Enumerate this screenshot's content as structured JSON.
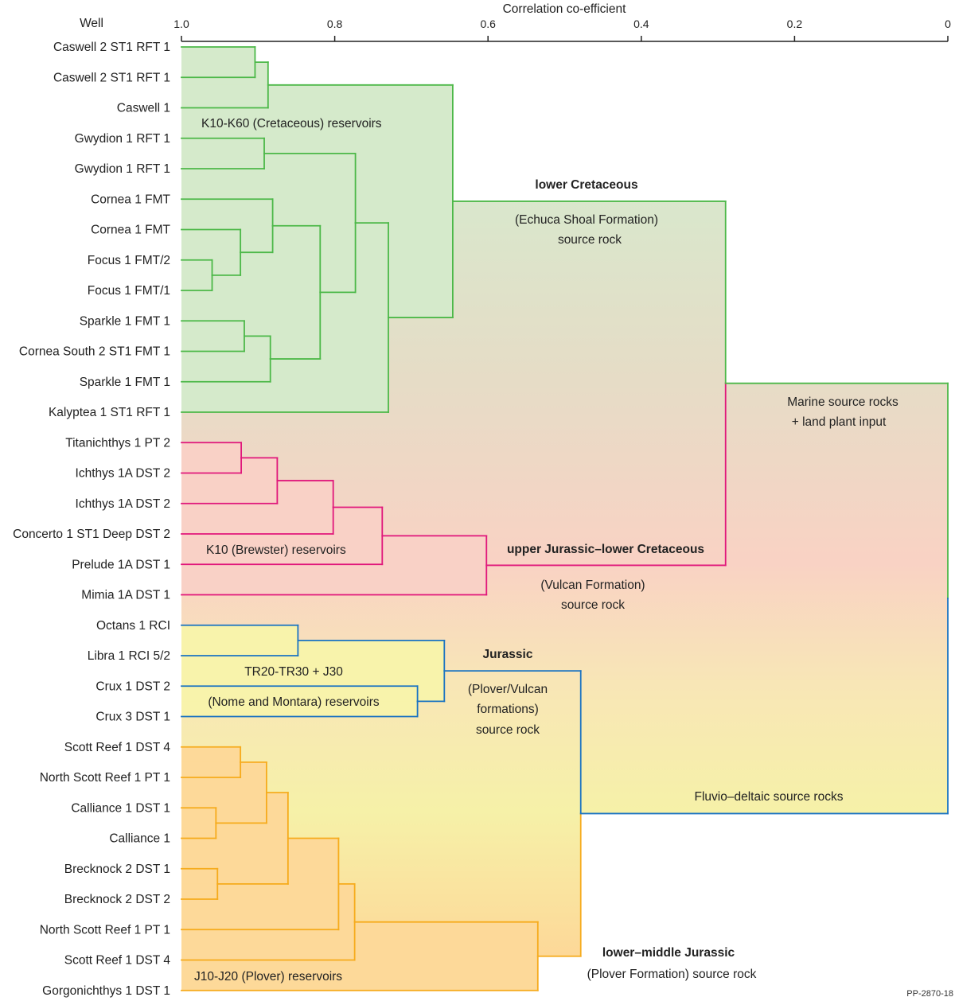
{
  "axis": {
    "title": "Correlation co-efficient",
    "leaf_header": "Well",
    "range": [
      1.0,
      0
    ],
    "ticks": [
      {
        "value": 1.0,
        "label": "1.0"
      },
      {
        "value": 0.8,
        "label": "0.8"
      },
      {
        "value": 0.6,
        "label": "0.6"
      },
      {
        "value": 0.4,
        "label": "0.4"
      },
      {
        "value": 0.2,
        "label": "0.2"
      },
      {
        "value": 0,
        "label": "0"
      }
    ]
  },
  "groups": {
    "green": {
      "line": "#4cb848",
      "fill": "#d5eacb"
    },
    "pink": {
      "line": "#e0177b",
      "fill": "#f9d1c6"
    },
    "blue": {
      "line": "#1a73c2",
      "fill": "#f8f3ab"
    },
    "orange": {
      "line": "#f6ab1c",
      "fill": "#fdd999"
    }
  },
  "gradient": [
    "#d9e7cc",
    "#e6dcc6",
    "#f9d2c4",
    "#f8e6b6",
    "#f6f1a8",
    "#fdd898"
  ],
  "leaves": [
    {
      "label": "Caswell 2 ST1 RFT 1",
      "group": "green"
    },
    {
      "label": "Caswell 2 ST1 RFT 1",
      "group": "green"
    },
    {
      "label": "Caswell 1",
      "group": "green"
    },
    {
      "label": "Gwydion 1 RFT 1",
      "group": "green"
    },
    {
      "label": "Gwydion 1 RFT 1",
      "group": "green"
    },
    {
      "label": "Cornea 1 FMT",
      "group": "green"
    },
    {
      "label": "Cornea 1 FMT",
      "group": "green"
    },
    {
      "label": "Focus 1 FMT/2",
      "group": "green"
    },
    {
      "label": "Focus 1 FMT/1",
      "group": "green"
    },
    {
      "label": "Sparkle 1 FMT 1",
      "group": "green"
    },
    {
      "label": "Cornea South 2 ST1 FMT 1",
      "group": "green"
    },
    {
      "label": "Sparkle 1 FMT 1",
      "group": "green"
    },
    {
      "label": "Kalyptea 1 ST1 RFT 1",
      "group": "green"
    },
    {
      "label": "Titanichthys 1 PT 2",
      "group": "pink"
    },
    {
      "label": "Ichthys 1A DST 2",
      "group": "pink"
    },
    {
      "label": "Ichthys 1A DST 2",
      "group": "pink"
    },
    {
      "label": "Concerto 1 ST1 Deep DST 2",
      "group": "pink"
    },
    {
      "label": "Prelude 1A DST 1",
      "group": "pink"
    },
    {
      "label": "Mimia 1A DST 1",
      "group": "pink"
    },
    {
      "label": "Octans 1 RCI",
      "group": "blue"
    },
    {
      "label": "Libra 1 RCI 5/2",
      "group": "blue"
    },
    {
      "label": "Crux 1 DST 2",
      "group": "blue"
    },
    {
      "label": "Crux 3 DST 1",
      "group": "blue"
    },
    {
      "label": "Scott Reef 1 DST 4",
      "group": "orange"
    },
    {
      "label": "North Scott Reef 1 PT 1",
      "group": "orange"
    },
    {
      "label": "Calliance 1 DST 1",
      "group": "orange"
    },
    {
      "label": "Calliance 1",
      "group": "orange"
    },
    {
      "label": "Brecknock 2 DST 1",
      "group": "orange"
    },
    {
      "label": "Brecknock 2 DST 2",
      "group": "orange"
    },
    {
      "label": "North Scott Reef 1 PT 1",
      "group": "orange"
    },
    {
      "label": "Scott Reef 1 DST 4",
      "group": "orange"
    },
    {
      "label": "Gorgonichthys 1 DST 1",
      "group": "orange"
    }
  ],
  "tree": {
    "h": 0.0,
    "c": [
      {
        "h": 0.29,
        "c": [
          {
            "h": 0.646,
            "c": [
              {
                "h": 0.887,
                "c": [
                  {
                    "h": 0.904,
                    "c": [
                      0,
                      1
                    ]
                  },
                  2
                ]
              },
              {
                "h": 0.73,
                "c": [
                  {
                    "h": 0.773,
                    "c": [
                      {
                        "h": 0.892,
                        "c": [
                          3,
                          4
                        ]
                      },
                      {
                        "h": 0.819,
                        "c": [
                          {
                            "h": 0.881,
                            "c": [
                              5,
                              {
                                "h": 0.923,
                                "c": [
                                  6,
                                  {
                                    "h": 0.96,
                                    "c": [
                                      7,
                                      8
                                    ]
                                  }
                                ]
                              }
                            ]
                          },
                          {
                            "h": 0.884,
                            "c": [
                              {
                                "h": 0.918,
                                "c": [
                                  9,
                                  10
                                ]
                              },
                              11
                            ]
                          }
                        ]
                      }
                    ]
                  },
                  12
                ]
              }
            ]
          },
          {
            "h": 0.602,
            "c": [
              {
                "h": 0.738,
                "c": [
                  {
                    "h": 0.802,
                    "c": [
                      {
                        "h": 0.875,
                        "c": [
                          {
                            "h": 0.922,
                            "c": [
                              13,
                              14
                            ]
                          },
                          15
                        ]
                      },
                      16
                    ]
                  },
                  17
                ]
              },
              18
            ]
          }
        ]
      },
      {
        "h": 0.479,
        "c": [
          {
            "h": 0.657,
            "c": [
              {
                "h": 0.848,
                "c": [
                  19,
                  20
                ]
              },
              {
                "h": 0.692,
                "c": [
                  21,
                  22
                ]
              }
            ]
          },
          {
            "h": 0.535,
            "c": [
              {
                "h": 0.774,
                "c": [
                  {
                    "h": 0.795,
                    "c": [
                      {
                        "h": 0.861,
                        "c": [
                          {
                            "h": 0.889,
                            "c": [
                              {
                                "h": 0.923,
                                "c": [
                                  23,
                                  24
                                ]
                              },
                              {
                                "h": 0.955,
                                "c": [
                                  25,
                                  26
                                ]
                              }
                            ]
                          },
                          {
                            "h": 0.953,
                            "c": [
                              27,
                              28
                            ]
                          }
                        ]
                      },
                      29
                    ]
                  },
                  30
                ]
              },
              31
            ]
          }
        ]
      }
    ]
  },
  "annotations": {
    "green_reservoirs": "K10-K60 (Cretaceous) reservoirs",
    "lower_cretaceous_title": "lower Cretaceous",
    "lower_cretaceous_line1": "(Echuca Shoal Formation)",
    "lower_cretaceous_line2": "source rock",
    "marine_line1": "Marine source rocks",
    "marine_line2": "+ land plant input",
    "pink_reservoirs": "K10 (Brewster) reservoirs",
    "ujlc_title": "upper Jurassic–lower Cretaceous",
    "ujlc_line1": "(Vulcan Formation)",
    "ujlc_line2": "source rock",
    "jurassic_title": "Jurassic",
    "jurassic_line1": "(Plover/Vulcan",
    "jurassic_line2": "formations)",
    "jurassic_line3": "source rock",
    "blue_reservoirs_line1": "TR20-TR30 + J30",
    "blue_reservoirs_line2": "(Nome and Montara) reservoirs",
    "fluvio": "Fluvio–deltaic source rocks",
    "lmj_title": "lower–middle Jurassic",
    "lmj_line1": "(Plover Formation) source rock",
    "orange_reservoirs": "J10-J20 (Plover) reservoirs",
    "figure_id": "PP-2870-18"
  }
}
